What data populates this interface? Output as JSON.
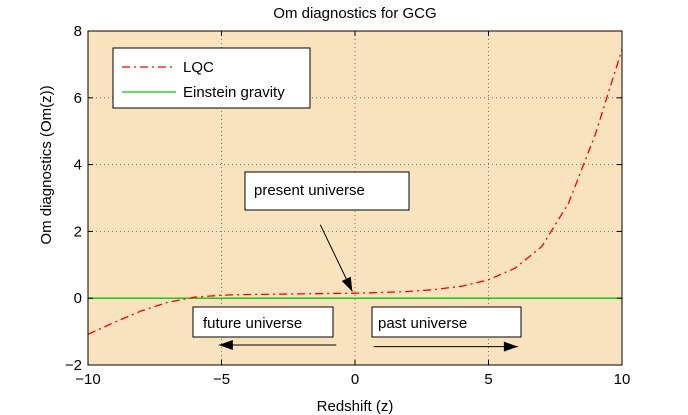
{
  "chart_data": {
    "type": "line",
    "title": "Om diagnostics for GCG",
    "xlabel": "Redshift (z)",
    "ylabel": "Om diagnostics (Om(z))",
    "xlim": [
      -10,
      10
    ],
    "ylim": [
      -2,
      8
    ],
    "xticks": [
      -10,
      -5,
      0,
      5,
      10
    ],
    "yticks": [
      -2,
      0,
      2,
      4,
      6,
      8
    ],
    "xtick_labels": [
      "−10",
      "−5",
      "0",
      "5",
      "10"
    ],
    "ytick_labels": [
      "−2",
      "0",
      "2",
      "4",
      "6",
      "8"
    ],
    "grid": true,
    "background": "#f9e3be",
    "legend_position": "top-left",
    "series": [
      {
        "name": "LQC",
        "color": "#ff0000",
        "style": "dash-dot",
        "x": [
          -10,
          -9,
          -8,
          -7,
          -6,
          -5,
          -4,
          -3,
          -2,
          -1,
          0,
          1,
          2,
          3,
          4,
          5,
          6,
          7,
          8,
          9,
          10
        ],
        "y": [
          -1.08,
          -0.72,
          -0.38,
          -0.12,
          0.03,
          0.09,
          0.11,
          0.12,
          0.13,
          0.14,
          0.15,
          0.17,
          0.2,
          0.26,
          0.36,
          0.55,
          0.9,
          1.55,
          2.85,
          4.9,
          7.45
        ]
      },
      {
        "name": "Einstein gravity",
        "color": "#00cc00",
        "style": "solid",
        "x": [
          -10,
          10
        ],
        "y": [
          0,
          0
        ]
      }
    ],
    "annotations": [
      {
        "text": "present universe",
        "arrow_from": [
          -1.3,
          2.2
        ],
        "arrow_to": [
          -0.1,
          0.2
        ]
      },
      {
        "text": "future universe",
        "arrow_from": [
          -0.7,
          -1.4
        ],
        "arrow_to": [
          -5.1,
          -1.4
        ]
      },
      {
        "text": "past universe",
        "arrow_from": [
          0.7,
          -1.45
        ],
        "arrow_to": [
          6.1,
          -1.45
        ]
      }
    ]
  }
}
